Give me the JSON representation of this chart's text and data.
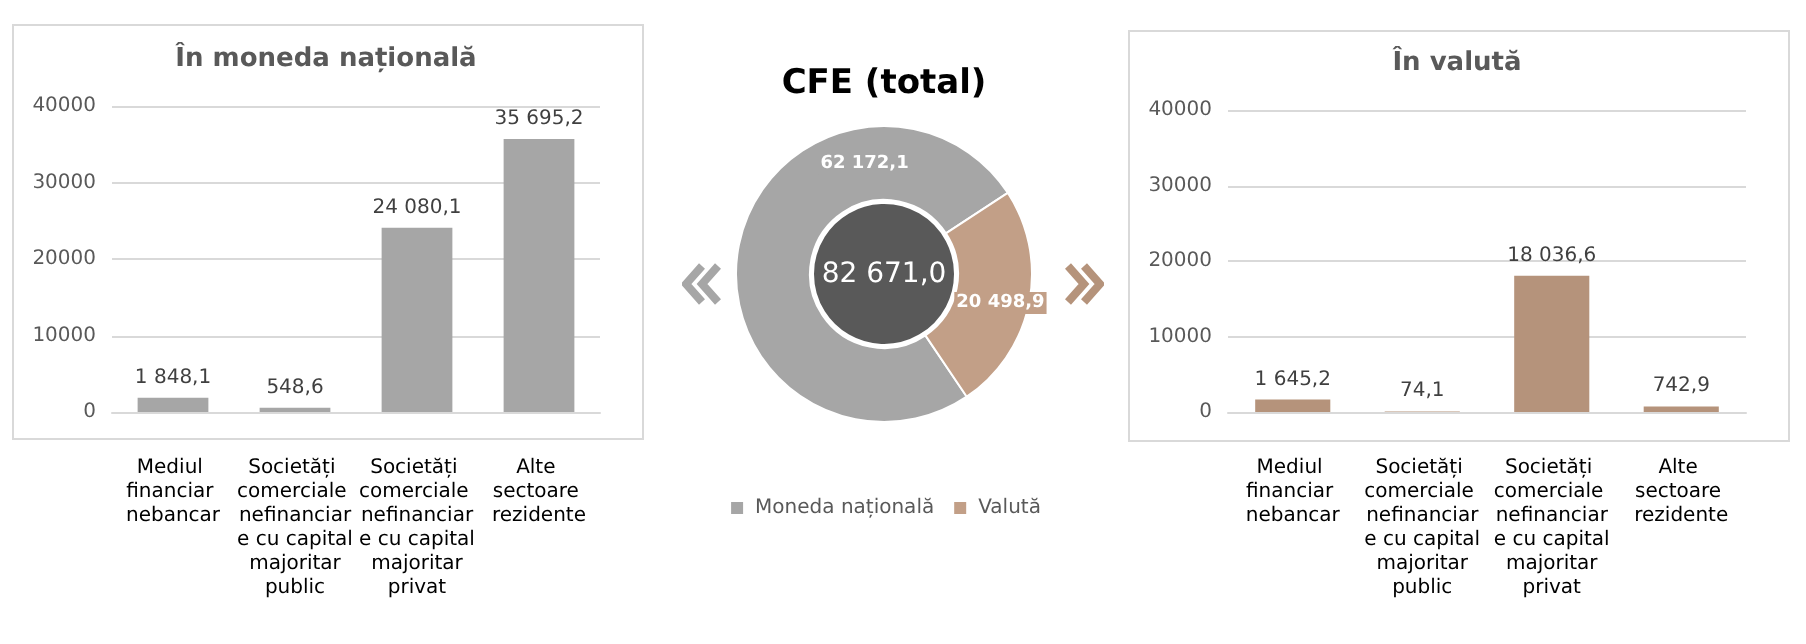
{
  "chart_data": [
    {
      "type": "bar",
      "title": "În moneda națională",
      "categories": [
        "Mediul financiar nebancar",
        "Societăți comerciale nefinanciare cu capital majoritar public",
        "Societăți comerciale nefinanciare cu capital majoritar privat",
        "Alte sectoare rezidente"
      ],
      "values": [
        1848.1,
        548.6,
        24080.1,
        35695.2
      ],
      "value_labels": [
        "1 848,1",
        "548,6",
        "24 080,1",
        "35 695,2"
      ],
      "color": "#a6a6a6",
      "ylim": [
        0,
        40000
      ],
      "yticks": [
        0,
        10000,
        20000,
        30000,
        40000
      ],
      "grid": "y"
    },
    {
      "type": "donut",
      "title": "CFE (total)",
      "categories": [
        "Moneda națională",
        "Valută"
      ],
      "values": [
        62172.1,
        20498.9
      ],
      "value_labels": [
        "62 172,1",
        "20 498,9"
      ],
      "colors": [
        "#a6a6a6",
        "#c29f87"
      ],
      "annotations": [
        "82 671,0"
      ],
      "legend": "bottom"
    },
    {
      "type": "bar",
      "title": "În valută",
      "categories": [
        "Mediul financiar nebancar",
        "Societăți comerciale nefinanciare cu capital majoritar public",
        "Societăți comerciale nefinanciare cu capital majoritar privat",
        "Alte sectoare rezidente"
      ],
      "values": [
        1645.2,
        74.1,
        18036.6,
        742.9
      ],
      "value_labels": [
        "1 645,2",
        "74,1",
        "18 036,6",
        "742,9"
      ],
      "color": "#b5937b",
      "ylim": [
        0,
        40000
      ],
      "yticks": [
        0,
        10000,
        20000,
        30000,
        40000
      ],
      "grid": "y"
    }
  ]
}
